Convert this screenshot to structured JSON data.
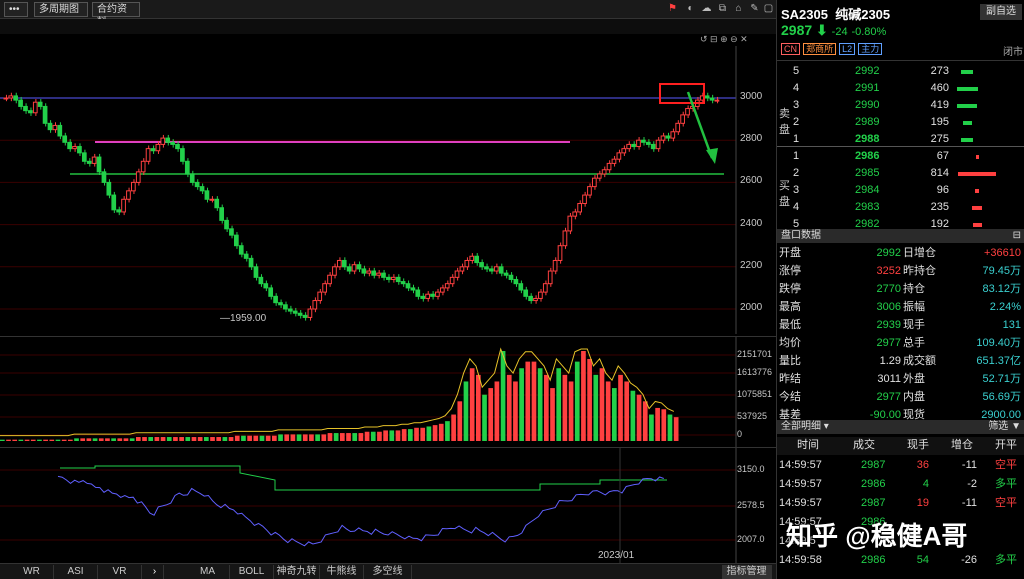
{
  "toolbar": {
    "menu_label": "•••",
    "period_label": "多周期图",
    "contract_label": "合约资料",
    "icons": [
      "bell-icon",
      "alert-icon",
      "cloud-icon",
      "copy-icon",
      "bookmark-icon",
      "tag-icon",
      "settings-icon",
      "minimize-icon",
      "close-icon"
    ]
  },
  "main_chart": {
    "price_ticks": [
      "3000",
      "2800",
      "2600",
      "2400",
      "2200",
      "2000"
    ],
    "low_label": "1959.00",
    "candles": [
      3000,
      3010,
      2990,
      2960,
      2940,
      2930,
      2980,
      2960,
      2880,
      2850,
      2870,
      2820,
      2790,
      2760,
      2770,
      2740,
      2700,
      2690,
      2720,
      2650,
      2600,
      2540,
      2470,
      2460,
      2520,
      2560,
      2600,
      2650,
      2700,
      2760,
      2750,
      2780,
      2810,
      2790,
      2780,
      2760,
      2700,
      2640,
      2600,
      2580,
      2560,
      2520,
      2520,
      2480,
      2420,
      2380,
      2350,
      2300,
      2260,
      2240,
      2200,
      2150,
      2120,
      2100,
      2060,
      2030,
      2020,
      2000,
      1990,
      1980,
      1970,
      1960,
      2000,
      2040,
      2080,
      2120,
      2160,
      2200,
      2230,
      2200,
      2180,
      2210,
      2190,
      2170,
      2180,
      2160,
      2170,
      2150,
      2140,
      2150,
      2130,
      2120,
      2100,
      2090,
      2060,
      2050,
      2070,
      2060,
      2080,
      2100,
      2120,
      2150,
      2180,
      2200,
      2230,
      2250,
      2220,
      2200,
      2190,
      2180,
      2200,
      2170,
      2160,
      2140,
      2120,
      2090,
      2060,
      2040,
      2050,
      2080,
      2120,
      2180,
      2230,
      2300,
      2370,
      2440,
      2460,
      2500,
      2540,
      2580,
      2620,
      2640,
      2660,
      2690,
      2710,
      2740,
      2760,
      2780,
      2770,
      2800,
      2790,
      2780,
      2760,
      2800,
      2820,
      2810,
      2840,
      2880,
      2920,
      2950,
      2960,
      2990,
      3010,
      3000,
      2990,
      2990
    ]
  },
  "volume_chart": {
    "ticks": [
      "2151701",
      "1613776",
      "1075851",
      "537925",
      "0"
    ],
    "bars": [
      0.01,
      0.01,
      0.01,
      0.01,
      0.01,
      0.01,
      0.01,
      0.01,
      0.01,
      0.01,
      0.01,
      0.01,
      0.02,
      0.02,
      0.02,
      0.02,
      0.02,
      0.02,
      0.02,
      0.02,
      0.02,
      0.02,
      0.03,
      0.03,
      0.03,
      0.03,
      0.03,
      0.03,
      0.03,
      0.03,
      0.03,
      0.03,
      0.03,
      0.03,
      0.03,
      0.03,
      0.03,
      0.03,
      0.04,
      0.04,
      0.04,
      0.04,
      0.04,
      0.04,
      0.04,
      0.05,
      0.05,
      0.05,
      0.05,
      0.05,
      0.05,
      0.05,
      0.05,
      0.06,
      0.06,
      0.06,
      0.06,
      0.06,
      0.06,
      0.07,
      0.07,
      0.07,
      0.08,
      0.08,
      0.08,
      0.09,
      0.09,
      0.1,
      0.1,
      0.11,
      0.12,
      0.13,
      0.15,
      0.2,
      0.3,
      0.45,
      0.55,
      0.5,
      0.35,
      0.4,
      0.45,
      0.7,
      0.5,
      0.45,
      0.55,
      0.6,
      0.6,
      0.55,
      0.5,
      0.4,
      0.55,
      0.5,
      0.45,
      0.6,
      0.7,
      0.62,
      0.5,
      0.55,
      0.45,
      0.4,
      0.5,
      0.45,
      0.38,
      0.35,
      0.3,
      0.2,
      0.25,
      0.24,
      0.2,
      0.18
    ]
  },
  "indicator_chart": {
    "ticks": [
      "3150.0",
      "2578.5",
      "2007.0"
    ],
    "date_label": "2023/01"
  },
  "bottom_tabs": [
    "WR",
    "ASI",
    "VR",
    "MA",
    "BOLL",
    "神奇九转",
    "牛熊线",
    "多空线"
  ],
  "bottom_manage": "指标管理",
  "header": {
    "code": "SA2305",
    "name": "纯碱2305",
    "price": "2987",
    "change": "-24",
    "change_pct": "-0.80%",
    "float_button": "副自选",
    "tags": [
      "CN",
      "郑商所",
      "L2",
      "主力"
    ],
    "market_status": "闭市"
  },
  "order_book": {
    "sell_label_1": "卖",
    "sell_label_2": "盘",
    "buy_label_1": "买",
    "buy_label_2": "盘",
    "asks": [
      {
        "level": "5",
        "price": "2992",
        "vol": "273",
        "bar": 0.2
      },
      {
        "level": "4",
        "price": "2991",
        "vol": "460",
        "bar": 0.35
      },
      {
        "level": "3",
        "price": "2990",
        "vol": "419",
        "bar": 0.32
      },
      {
        "level": "2",
        "price": "2989",
        "vol": "195",
        "bar": 0.15
      },
      {
        "level": "1",
        "price": "2988",
        "vol": "275",
        "bar": 0.2
      }
    ],
    "bids": [
      {
        "level": "1",
        "price": "2986",
        "vol": "67",
        "bar": 0.05
      },
      {
        "level": "2",
        "price": "2985",
        "vol": "814",
        "bar": 0.62
      },
      {
        "level": "3",
        "price": "2984",
        "vol": "96",
        "bar": 0.07
      },
      {
        "level": "4",
        "price": "2983",
        "vol": "235",
        "bar": 0.18
      },
      {
        "level": "5",
        "price": "2982",
        "vol": "192",
        "bar": 0.15
      }
    ]
  },
  "stats": {
    "title": "盘口数据",
    "rows": [
      {
        "l": "开盘",
        "v": "2992",
        "l2": "日增仓",
        "v2": "+36610"
      },
      {
        "l": "涨停",
        "v": "3252",
        "l2": "昨持仓",
        "v2": "79.45万"
      },
      {
        "l": "跌停",
        "v": "2770",
        "l2": "持仓",
        "v2": "83.12万"
      },
      {
        "l": "最高",
        "v": "3006",
        "l2": "振幅",
        "v2": "2.24%"
      },
      {
        "l": "最低",
        "v": "2939",
        "l2": "现手",
        "v2": "131"
      },
      {
        "l": "均价",
        "v": "2977",
        "l2": "总手",
        "v2": "109.40万"
      },
      {
        "l": "量比",
        "v": "1.29",
        "l2": "成交额",
        "v2": "651.37亿"
      },
      {
        "l": "昨结",
        "v": "3011",
        "l2": "外盘",
        "v2": "52.71万"
      },
      {
        "l": "今结",
        "v": "2977",
        "l2": "内盘",
        "v2": "56.69万"
      },
      {
        "l": "基差",
        "v": "-90.00",
        "l2": "现货",
        "v2": "2900.00"
      }
    ]
  },
  "trades": {
    "title": "全部明细",
    "filter": "筛选",
    "headers": [
      "时间",
      "成交",
      "现手",
      "增仓",
      "开平"
    ],
    "rows": [
      {
        "t": "14:59:57",
        "p": "2987",
        "v": "36",
        "d": "-11",
        "o": "空平"
      },
      {
        "t": "14:59:57",
        "p": "2986",
        "v": "4",
        "d": "-2",
        "o": "多平"
      },
      {
        "t": "14:59:57",
        "p": "2987",
        "v": "19",
        "d": "-11",
        "o": "空平"
      },
      {
        "t": "14:59:57",
        "p": "2986",
        "v": "",
        "d": "",
        "o": ""
      },
      {
        "t": "14:59:5",
        "p": "",
        "v": "",
        "d": "",
        "o": ""
      },
      {
        "t": "14:59:58",
        "p": "2986",
        "v": "54",
        "d": "-26",
        "o": "多平"
      }
    ]
  },
  "watermark": "知乎 @稳健A哥",
  "colors": {
    "up": "#ff4040",
    "down": "#22d04a",
    "accent": "#e6c229"
  }
}
